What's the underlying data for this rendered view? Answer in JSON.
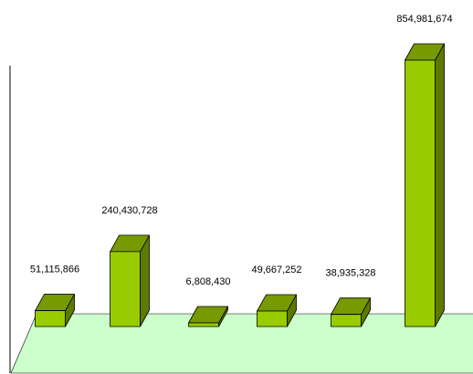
{
  "chart_data": {
    "type": "bar",
    "categories": [
      "",
      "",
      "",
      "",
      "",
      ""
    ],
    "values": [
      51115866,
      240430728,
      6808430,
      49667252,
      38935328,
      854981674
    ],
    "labels": [
      "51,115,866",
      "240,430,728",
      "6,808,430",
      "49,667,252",
      "38,935,328",
      "854,981,674"
    ],
    "title": "",
    "xlabel": "",
    "ylabel": "",
    "ylim": [
      0,
      854981674
    ],
    "grid": false,
    "legend": "none",
    "style": "3d-column"
  },
  "colors": {
    "bar_front": "#99cc00",
    "bar_top": "#779a00",
    "bar_side": "#5c7a00",
    "floor": "#ccffcc",
    "outline": "#000000",
    "background": "#ffffff"
  }
}
